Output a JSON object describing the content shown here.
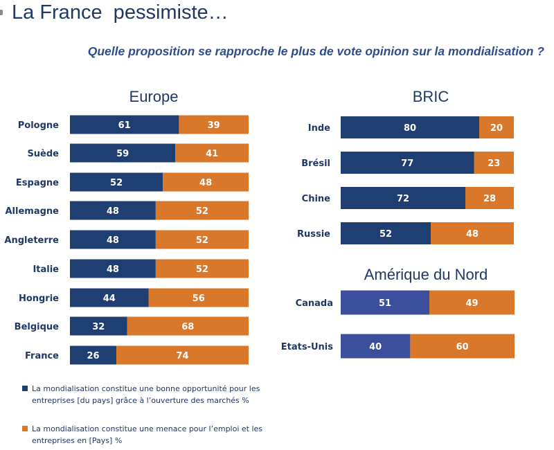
{
  "header": {
    "title": "La France  pessimiste…",
    "subtitle": "Quelle proposition se rapproche le plus de vote opinion sur la mondialisation ?"
  },
  "colors": {
    "opportunity": "#1f3f73",
    "opportunity_na": "#3b4f9c",
    "threat": "#d9782b"
  },
  "legend": {
    "items": [
      {
        "label": "La mondialisation constitue une bonne opportunité pour les entreprises [du pays] grâce à l’ouverture des marchés %",
        "color": "#1f3f73"
      },
      {
        "label": "La mondialisation constitue une menace pour l’emploi et les entreprises en [Pays] %",
        "color": "#d9782b"
      }
    ]
  },
  "chart_data": [
    {
      "type": "bar",
      "orientation": "horizontal",
      "stacked": true,
      "title": "Europe",
      "categories": [
        "Pologne",
        "Suède",
        "Espagne",
        "Allemagne",
        "Angleterre",
        "Italie",
        "Hongrie",
        "Belgique",
        "France"
      ],
      "series": [
        {
          "values": [
            61,
            59,
            52,
            48,
            48,
            48,
            44,
            32,
            26
          ]
        },
        {
          "values": [
            39,
            41,
            48,
            52,
            52,
            52,
            56,
            68,
            74
          ]
        }
      ],
      "xlim": [
        0,
        100
      ]
    },
    {
      "type": "bar",
      "orientation": "horizontal",
      "stacked": true,
      "title": "BRIC",
      "categories": [
        "Inde",
        "Brésil",
        "Chine",
        "Russie"
      ],
      "series": [
        {
          "values": [
            80,
            77,
            72,
            52
          ]
        },
        {
          "values": [
            20,
            23,
            28,
            48
          ]
        }
      ],
      "xlim": [
        0,
        100
      ]
    },
    {
      "type": "bar",
      "orientation": "horizontal",
      "stacked": true,
      "title": "Amérique du Nord",
      "categories": [
        "Canada",
        "Etats-Unis"
      ],
      "series": [
        {
          "values": [
            51,
            40
          ]
        },
        {
          "values": [
            49,
            60
          ]
        }
      ],
      "xlim": [
        0,
        100
      ]
    }
  ]
}
